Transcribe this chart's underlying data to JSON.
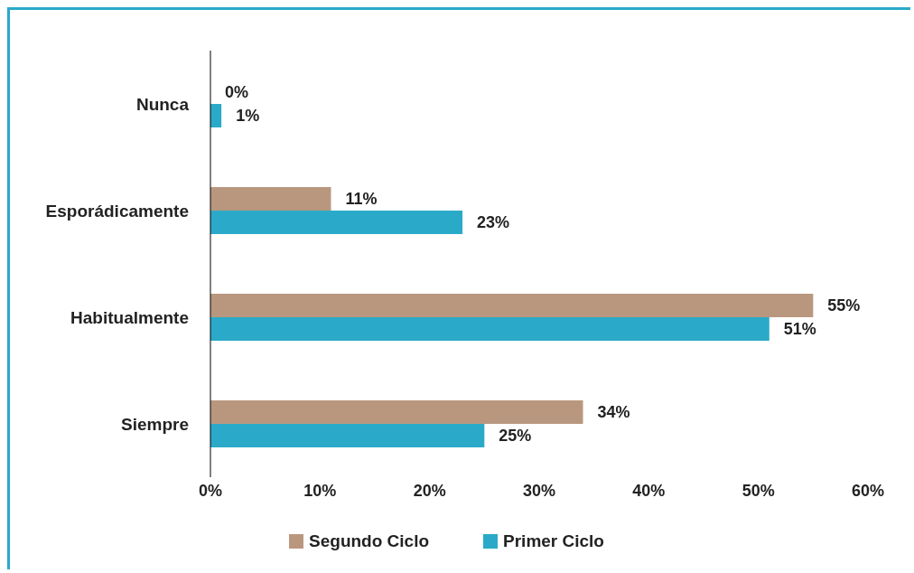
{
  "chart_data": {
    "type": "bar",
    "orientation": "horizontal",
    "categories": [
      "Nunca",
      "Esporádicamente",
      "Habitualmente",
      "Siempre"
    ],
    "series": [
      {
        "name": "Segundo Ciclo",
        "color": "#b9977f",
        "values": [
          0,
          11,
          55,
          34
        ],
        "value_labels": [
          "0%",
          "11%",
          "55%",
          "34%"
        ]
      },
      {
        "name": "Primer Ciclo",
        "color": "#2aaac8",
        "values": [
          1,
          23,
          51,
          25
        ],
        "value_labels": [
          "1%",
          "23%",
          "51%",
          "25%"
        ]
      }
    ],
    "xlim": [
      0,
      60
    ],
    "xticks": [
      {
        "value": 0,
        "label": "0%"
      },
      {
        "value": 10,
        "label": "10%"
      },
      {
        "value": 20,
        "label": "20%"
      },
      {
        "value": 30,
        "label": "30%"
      },
      {
        "value": 40,
        "label": "40%"
      },
      {
        "value": 50,
        "label": "50%"
      },
      {
        "value": 60,
        "label": "60%"
      }
    ],
    "grid": false,
    "legend": "bottom"
  }
}
